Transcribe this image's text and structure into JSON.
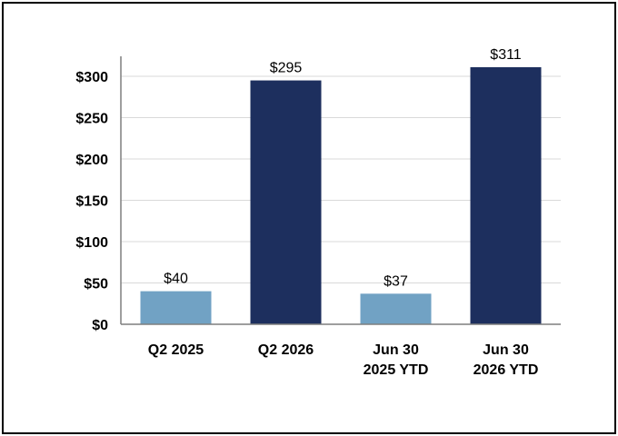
{
  "chart_data": {
    "type": "bar",
    "categories": [
      [
        "Q2 2025"
      ],
      [
        "Q2 2026"
      ],
      [
        "Jun 30",
        "2025 YTD"
      ],
      [
        "Jun 30",
        "2026 YTD"
      ]
    ],
    "values": [
      40,
      295,
      37,
      311
    ],
    "data_labels": [
      "$40",
      "$295",
      "$37",
      "$311"
    ],
    "bar_colors": [
      "#71a2c4",
      "#1d2f5e",
      "#71a2c4",
      "#1d2f5e"
    ],
    "y_ticks": [
      0,
      50,
      100,
      150,
      200,
      250,
      300
    ],
    "y_tick_labels": [
      "$0",
      "$50",
      "$100",
      "$150",
      "$200",
      "$250",
      "$300"
    ],
    "ylim": [
      0,
      300
    ],
    "title": "",
    "xlabel": "",
    "ylabel": "",
    "grid": true,
    "legend": "none"
  }
}
